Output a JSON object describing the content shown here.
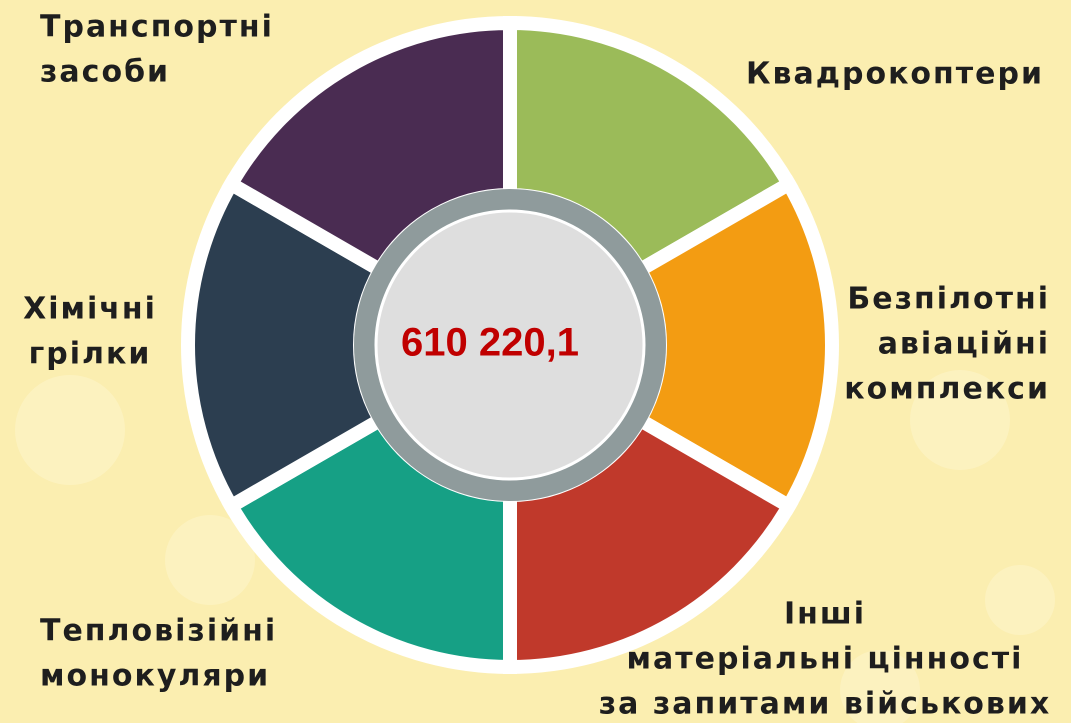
{
  "center_value": "610 220,1",
  "segments": [
    {
      "label": [
        "Квадрокоптери"
      ]
    },
    {
      "label": [
        "Безпілотні",
        "авіаційні",
        "комплекси"
      ]
    },
    {
      "label": [
        "Інші",
        "матеріальні цінності",
        "за запитами військових"
      ]
    },
    {
      "label": [
        "Тепловізійні",
        "монокуляри"
      ]
    },
    {
      "label": [
        "Хімічні",
        "грілки"
      ]
    },
    {
      "label": [
        "Транспортні",
        "засоби"
      ]
    }
  ]
}
